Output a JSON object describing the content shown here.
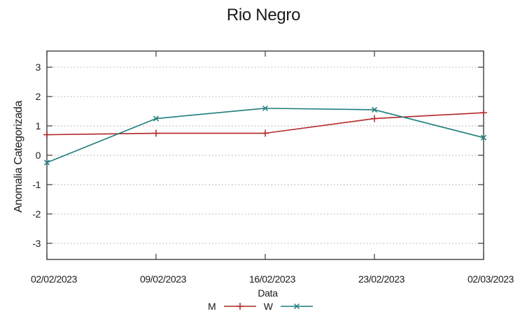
{
  "chart_data": {
    "type": "line",
    "title": "Rio Negro",
    "xlabel": "Data",
    "ylabel": "Anomalia Categorizada",
    "categories": [
      "02/02/2023",
      "09/02/2023",
      "16/02/2023",
      "23/02/2023",
      "02/03/2023"
    ],
    "yticks": [
      -3,
      -2,
      -1,
      0,
      1,
      2,
      3
    ],
    "ylim": [
      -3.55,
      3.55
    ],
    "grid": "horizontal-dotted",
    "legend_position": "bottom-center",
    "series": [
      {
        "name": "M",
        "color": "#b22626",
        "marker": "plus",
        "values": [
          0.7,
          0.75,
          0.75,
          1.25,
          1.45
        ]
      },
      {
        "name": "W",
        "color": "#1f7d7d",
        "marker": "cross",
        "values": [
          -0.25,
          1.25,
          1.6,
          1.55,
          0.6
        ]
      }
    ],
    "axis_color": "#4a4a4a",
    "grid_color": "#b5b5b5",
    "text_color": "#1a1a1a"
  }
}
